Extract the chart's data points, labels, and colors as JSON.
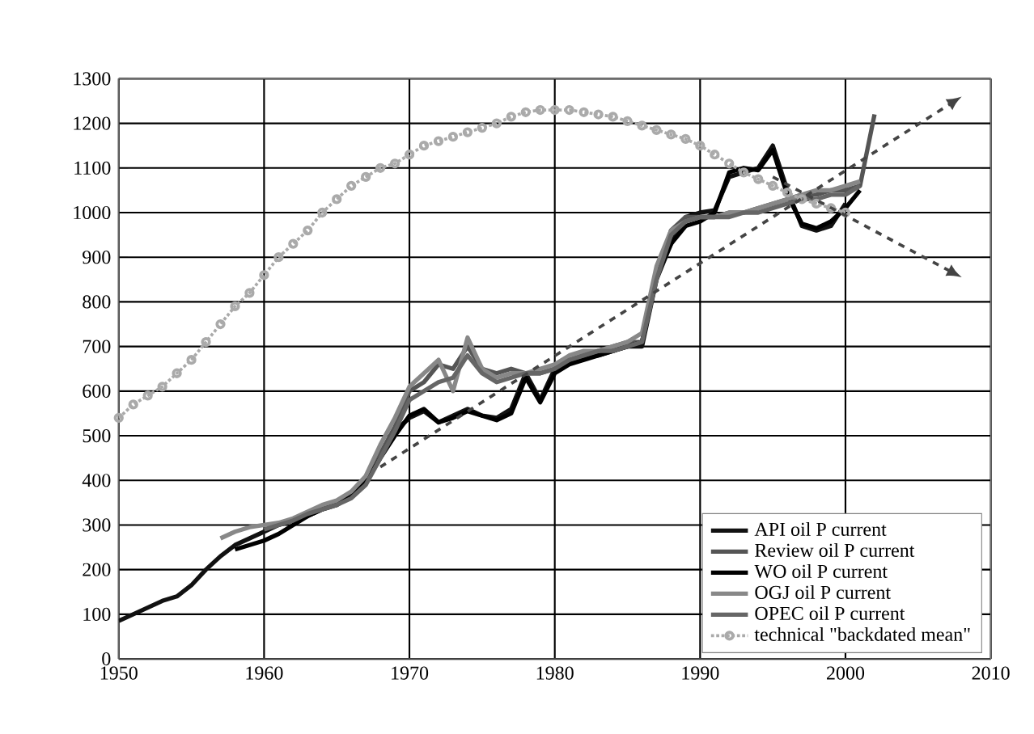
{
  "chart_data": {
    "type": "line",
    "xlim": [
      1950,
      2010
    ],
    "ylim": [
      0,
      1300
    ],
    "xticks": [
      1950,
      1960,
      1970,
      1980,
      1990,
      2000,
      2010
    ],
    "yticks": [
      0,
      100,
      200,
      300,
      400,
      500,
      600,
      700,
      800,
      900,
      1000,
      1100,
      1200,
      1300
    ],
    "grid": true,
    "legend": "bottom right",
    "marker": "none",
    "line_style": "solid",
    "series": [
      {
        "name": "API oil P current",
        "color": "#111111",
        "x": [
          1950,
          1951,
          1952,
          1953,
          1954,
          1955,
          1956,
          1957,
          1958,
          1959,
          1960,
          1961,
          1962,
          1963,
          1964,
          1965,
          1966,
          1967,
          1968,
          1969,
          1970,
          1971,
          1972,
          1973,
          1974,
          1975,
          1976,
          1977,
          1978,
          1979,
          1980,
          1981,
          1982,
          1983,
          1984,
          1985,
          1986,
          1987,
          1988,
          1989,
          1990,
          1991,
          1992,
          1993,
          1994,
          1995,
          1996,
          1997,
          1998,
          1999,
          2000
        ],
        "values": [
          85,
          100,
          115,
          130,
          140,
          165,
          200,
          230,
          255,
          270,
          285,
          300,
          310,
          320,
          335,
          350,
          370,
          400,
          460,
          510,
          540,
          555,
          530,
          545,
          560,
          545,
          540,
          560,
          640,
          580,
          650,
          665,
          675,
          680,
          690,
          700,
          700,
          850,
          930,
          990,
          1000,
          1005,
          1080,
          1090,
          1100,
          1150,
          1050,
          970,
          960,
          970,
          1020
        ]
      },
      {
        "name": "Review oil P current",
        "color": "#555555",
        "x": [
          1965,
          1966,
          1967,
          1968,
          1969,
          1970,
          1971,
          1972,
          1973,
          1974,
          1975,
          1976,
          1977,
          1978,
          1979,
          1980,
          1981,
          1982,
          1983,
          1984,
          1985,
          1986,
          1987,
          1988,
          1989,
          1990,
          1991,
          1992,
          1993,
          1994,
          1995,
          1996,
          1997,
          1998,
          1999,
          2000,
          2001,
          2002
        ],
        "values": [
          350,
          370,
          400,
          460,
          520,
          600,
          620,
          660,
          650,
          700,
          650,
          640,
          650,
          640,
          640,
          650,
          670,
          680,
          690,
          700,
          710,
          710,
          860,
          960,
          990,
          990,
          990,
          1000,
          1000,
          1010,
          1020,
          1030,
          1040,
          1040,
          1050,
          1050,
          1060,
          1220
        ]
      },
      {
        "name": "WO oil P current",
        "color": "#000000",
        "x": [
          1958,
          1959,
          1960,
          1961,
          1962,
          1963,
          1964,
          1965,
          1966,
          1967,
          1968,
          1969,
          1970,
          1971,
          1972,
          1973,
          1974,
          1975,
          1976,
          1977,
          1978,
          1979,
          1980,
          1981,
          1982,
          1983,
          1984,
          1985,
          1986,
          1987,
          1988,
          1989,
          1990,
          1991,
          1992,
          1993,
          1994,
          1995,
          1996,
          1997,
          1998,
          1999,
          2000,
          2001
        ],
        "values": [
          245,
          255,
          265,
          280,
          300,
          320,
          335,
          345,
          365,
          395,
          450,
          500,
          545,
          560,
          530,
          540,
          555,
          545,
          535,
          550,
          630,
          575,
          640,
          660,
          670,
          680,
          690,
          700,
          710,
          860,
          930,
          970,
          980,
          1000,
          1090,
          1100,
          1095,
          1140,
          1040,
          975,
          965,
          980,
          1010,
          1050
        ]
      },
      {
        "name": "OGJ oil P current",
        "color": "#888888",
        "x": [
          1957,
          1958,
          1959,
          1960,
          1961,
          1962,
          1963,
          1964,
          1965,
          1966,
          1967,
          1968,
          1969,
          1970,
          1971,
          1972,
          1973,
          1974,
          1975,
          1976,
          1977,
          1978,
          1979,
          1980,
          1981,
          1982,
          1983,
          1984,
          1985,
          1986,
          1987,
          1988,
          1989,
          1990,
          1991,
          1992,
          1993,
          1994,
          1995,
          1996,
          1997,
          1998,
          1999,
          2000,
          2001
        ],
        "values": [
          270,
          285,
          295,
          300,
          305,
          315,
          330,
          345,
          355,
          375,
          410,
          480,
          540,
          610,
          640,
          670,
          600,
          720,
          650,
          630,
          640,
          640,
          650,
          660,
          680,
          690,
          690,
          700,
          710,
          730,
          880,
          960,
          980,
          990,
          990,
          1000,
          1000,
          1010,
          1020,
          1030,
          1040,
          1050,
          1050,
          1060,
          1070
        ]
      },
      {
        "name": "OPEC oil P current",
        "color": "#666666",
        "x": [
          1960,
          1961,
          1962,
          1963,
          1964,
          1965,
          1966,
          1967,
          1968,
          1969,
          1970,
          1971,
          1972,
          1973,
          1974,
          1975,
          1976,
          1977,
          1978,
          1979,
          1980,
          1981,
          1982,
          1983,
          1984,
          1985,
          1986,
          1987,
          1988,
          1989,
          1990,
          1991,
          1992,
          1993,
          1994,
          1995,
          1996,
          1997,
          1998,
          1999,
          2000,
          2001
        ],
        "values": [
          290,
          300,
          310,
          325,
          335,
          345,
          360,
          390,
          450,
          510,
          580,
          600,
          620,
          630,
          680,
          640,
          620,
          630,
          640,
          640,
          650,
          670,
          680,
          690,
          690,
          700,
          710,
          850,
          950,
          980,
          990,
          990,
          990,
          1000,
          1000,
          1010,
          1020,
          1030,
          1030,
          1040,
          1040,
          1060
        ]
      },
      {
        "name": "technical \"backdated mean\"",
        "color": "#aaaaaa",
        "marker": "circle",
        "line_style": "dotted",
        "x": [
          1950,
          1951,
          1952,
          1953,
          1954,
          1955,
          1956,
          1957,
          1958,
          1959,
          1960,
          1961,
          1962,
          1963,
          1964,
          1965,
          1966,
          1967,
          1968,
          1969,
          1970,
          1971,
          1972,
          1973,
          1974,
          1975,
          1976,
          1977,
          1978,
          1979,
          1980,
          1981,
          1982,
          1983,
          1984,
          1985,
          1986,
          1987,
          1988,
          1989,
          1990,
          1991,
          1992,
          1993,
          1994,
          1995,
          1996,
          1997,
          1998,
          1999,
          2000
        ],
        "values": [
          540,
          570,
          590,
          610,
          640,
          670,
          710,
          750,
          790,
          820,
          860,
          900,
          930,
          960,
          1000,
          1030,
          1060,
          1080,
          1100,
          1110,
          1130,
          1150,
          1160,
          1170,
          1180,
          1190,
          1200,
          1215,
          1225,
          1230,
          1230,
          1230,
          1225,
          1220,
          1215,
          1205,
          1195,
          1185,
          1175,
          1165,
          1150,
          1130,
          1110,
          1090,
          1075,
          1060,
          1045,
          1030,
          1020,
          1010,
          1000
        ]
      }
    ]
  }
}
